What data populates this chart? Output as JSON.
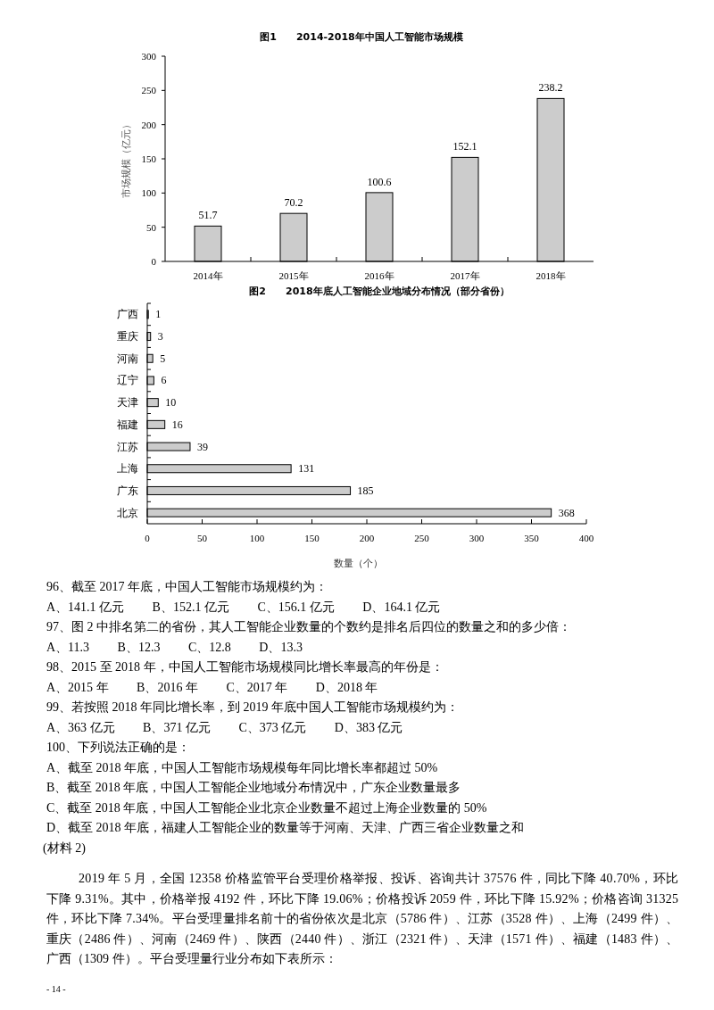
{
  "chart_data": [
    {
      "type": "bar",
      "title": "图1　　2014-2018年中国人工智能市场规模",
      "ylabel": "市场规模（亿元）",
      "categories": [
        "2014年",
        "2015年",
        "2016年",
        "2017年",
        "2018年"
      ],
      "values": [
        51.7,
        70.2,
        100.6,
        152.1,
        238.2
      ],
      "color": "#cccccc",
      "ylim": [
        0,
        300
      ],
      "yticks": [
        0,
        50,
        100,
        150,
        200,
        250,
        300
      ],
      "data_labels": true
    },
    {
      "type": "bar",
      "orientation": "horizontal",
      "title": "图2　　2018年底人工智能企业地域分布情况（部分省份）",
      "xlabel": "数量（个）",
      "categories": [
        "广西",
        "重庆",
        "河南",
        "辽宁",
        "天津",
        "福建",
        "江苏",
        "上海",
        "广东",
        "北京"
      ],
      "values": [
        1,
        3,
        5,
        6,
        10,
        16,
        39,
        131,
        185,
        368
      ],
      "color": "#cccccc",
      "xlim": [
        0,
        400
      ],
      "xticks": [
        0,
        50,
        100,
        150,
        200,
        250,
        300,
        350,
        400
      ],
      "data_labels": true,
      "annotations": [
        "96、截至 2017 年底，中国人工智能市场规模约为：",
        "A、141.1 亿元　　 B、152.1 亿元　　 C、156.1 亿元　　 D、164.1 亿元",
        "97、图 2 中排名第二的省份，其人工智能企业数量的个数约是排名后四位的数量之和的多少倍：",
        "A、11.3　　 B、12.3　　 C、12.8　　 D、13.3",
        "98、2015 至 2018 年，中国人工智能市场规模同比增长率最高的年份是：",
        "A、2015 年　　 B、2016 年　　 C、2017 年　　 D、2018 年",
        "99、若按照 2018 年同比增长率，到 2019 年底中国人工智能市场规模约为：",
        "A、363 亿元　　 B、371 亿元　　 C、373 亿元　　 D、383 亿元",
        "100、下列说法正确的是：",
        "A、截至 2018 年底，中国人工智能市场规模每年同比增长率都超过 50%",
        "B、截至 2018 年底，中国人工智能企业地域分布情况中，广东企业数量最多",
        "C、截至 2018 年底，中国人工智能企业北京企业数量不超过上海企业数量的 50%",
        "D、截至 2018 年底，福建人工智能企业的数量等于河南、天津、广西三省企业数量之和",
        "(材料 2)",
        "2019 年 5 月，全国 12358 价格监管平台受理价格举报、投诉、咨询共计 37576 件，同比下降 40.70%，环比",
        "下降 9.31%。其中，价格举报 4192 件，环比下降 19.06%；价格投诉 2059 件，环比下降 15.92%；价格咨询 31325",
        "件，环比下降 7.34%。平台受理量排名前十的省份依次是北京（5786 件）、江苏（3528 件）、上海（2499 件）、",
        "重庆（2486 件）、河南（2469 件）、陕西（2440 件）、浙江（2321 件）、天津（1571 件）、福建（1483 件）、",
        "广西（1309 件）。平台受理量行业分布如下表所示：",
        "- 14 -"
      ]
    }
  ]
}
